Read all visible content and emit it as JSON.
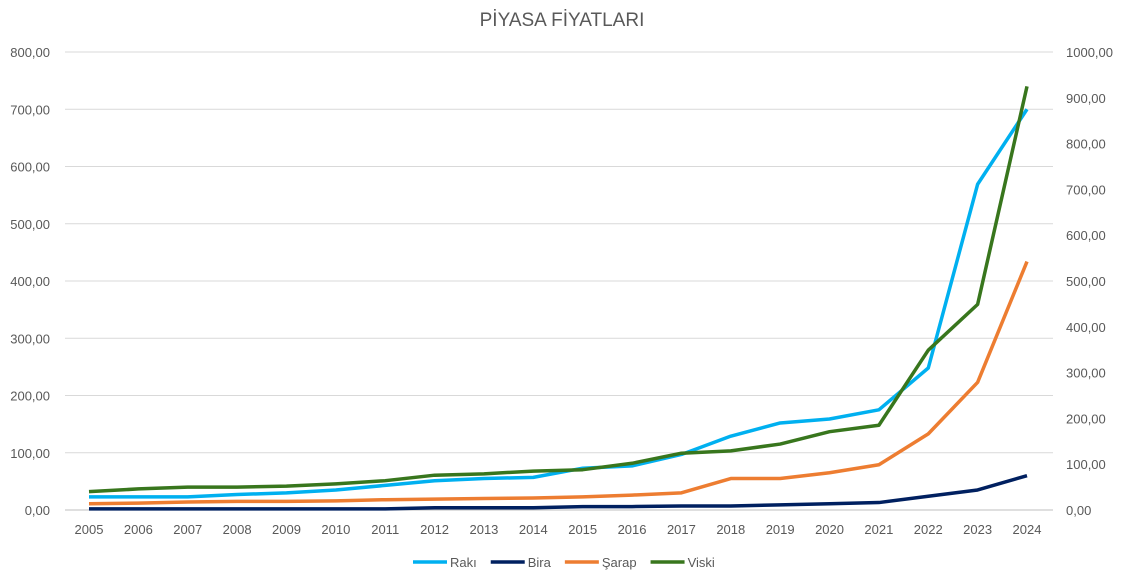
{
  "chart_data": {
    "type": "line",
    "title": "PİYASA FİYATLARI",
    "categories": [
      "2005",
      "2006",
      "2007",
      "2008",
      "2009",
      "2010",
      "2011",
      "2012",
      "2013",
      "2014",
      "2015",
      "2016",
      "2017",
      "2018",
      "2019",
      "2020",
      "2021",
      "2022",
      "2023",
      "2024"
    ],
    "y_left": {
      "min": 0,
      "max": 800,
      "step": 100,
      "ticks": [
        "0,00",
        "100,00",
        "200,00",
        "300,00",
        "400,00",
        "500,00",
        "600,00",
        "700,00",
        "800,00"
      ]
    },
    "y_right": {
      "min": 0,
      "max": 1000,
      "step": 100,
      "ticks": [
        "0,00",
        "100,00",
        "200,00",
        "300,00",
        "400,00",
        "500,00",
        "600,00",
        "700,00",
        "800,00",
        "900,00",
        "1000,00"
      ]
    },
    "grid": true,
    "legend_position": "bottom",
    "series": [
      {
        "name": "Rakı",
        "color": "#00B0F0",
        "axis": "left",
        "values": [
          23,
          23,
          23,
          27,
          30,
          35,
          43,
          51,
          55,
          57,
          73,
          77,
          97,
          129,
          152,
          159,
          175,
          248,
          569,
          700
        ]
      },
      {
        "name": "Bira",
        "color": "#002060",
        "axis": "left",
        "values": [
          2,
          2,
          2,
          2,
          2,
          2,
          2,
          4,
          4,
          4,
          6,
          6,
          7,
          7,
          9,
          11,
          13,
          24,
          35,
          60
        ]
      },
      {
        "name": "Şarap",
        "color": "#ED7D31",
        "axis": "left",
        "values": [
          11,
          12,
          14,
          15,
          15,
          16,
          18,
          19,
          20,
          21,
          23,
          26,
          30,
          55,
          55,
          65,
          79,
          133,
          223,
          434
        ]
      },
      {
        "name": "Viski",
        "color": "#38761D",
        "axis": "right",
        "values": [
          40,
          46,
          50,
          50,
          52,
          57,
          64,
          76,
          79,
          85,
          88,
          102,
          124,
          129,
          144,
          171,
          185,
          349,
          449,
          925
        ]
      }
    ]
  }
}
